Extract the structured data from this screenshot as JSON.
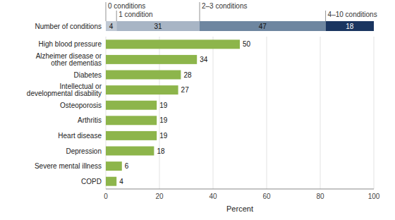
{
  "chart_data": [
    {
      "type": "bar",
      "orientation": "horizontal",
      "stacked": true,
      "categories": [
        "Number of conditions"
      ],
      "series": [
        {
          "name": "0 conditions",
          "color": "#c0c9d4",
          "values": [
            4
          ]
        },
        {
          "name": "1 condition",
          "color": "#a8b5c5",
          "values": [
            31
          ]
        },
        {
          "name": "2–3 conditions",
          "color": "#6e86a0",
          "values": [
            47
          ]
        },
        {
          "name": "4–10 conditions",
          "color": "#1a3560",
          "values": [
            18
          ]
        }
      ],
      "xlim": [
        0,
        100
      ],
      "data_labels": true,
      "legend": "top",
      "tick_labels": false
    },
    {
      "type": "bar",
      "orientation": "horizontal",
      "categories": [
        "High blood pressure",
        "Alzheimer disease or\nother dementias",
        "Diabetes",
        "Intellectual or\ndevelopmental disability",
        "Osteoporosis",
        "Arthritis",
        "Heart disease",
        "Depression",
        "Severe mental illness",
        "COPD"
      ],
      "values": [
        50,
        34,
        28,
        27,
        19,
        19,
        19,
        18,
        6,
        4
      ],
      "color": "#8db54b",
      "xlabel": "Percent",
      "xlim": [
        0,
        100
      ],
      "xticks": [
        0,
        20,
        40,
        60,
        80,
        100
      ],
      "grid": true,
      "data_labels": true
    }
  ]
}
